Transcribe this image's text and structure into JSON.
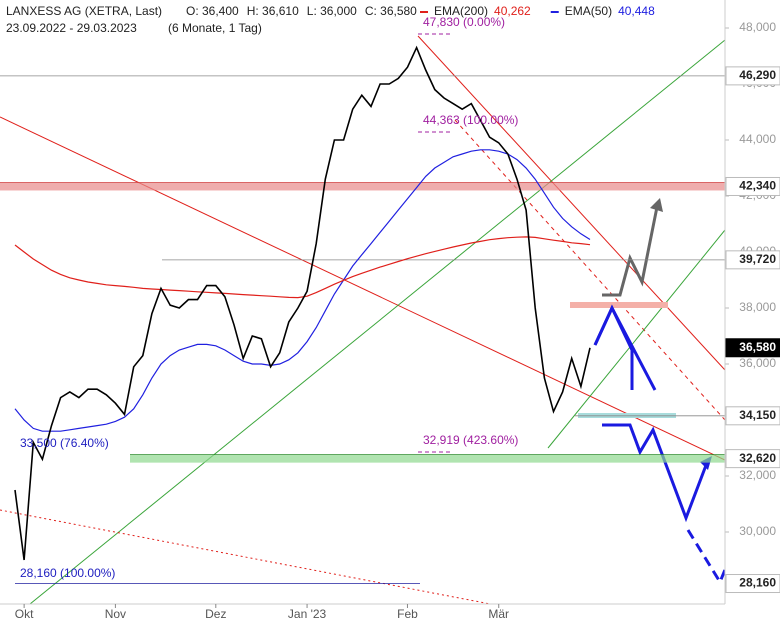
{
  "chart_data": {
    "type": "line",
    "title": "LANXESS AG (XETRA, Last)",
    "ohlc": [
      "O: 36,400",
      "H: 36,610",
      "L: 36,000",
      "C: 36,580"
    ],
    "subtitle": "23.09.2022 - 29.03.2023",
    "period": "(6 Monate, 1 Tag)",
    "categories": [
      null,
      "Okt",
      null,
      null,
      null,
      null,
      null,
      null,
      null,
      null,
      null,
      "Nov",
      null,
      null,
      null,
      null,
      null,
      null,
      null,
      null,
      null,
      null,
      "Dez",
      null,
      null,
      null,
      null,
      null,
      null,
      null,
      null,
      null,
      "Jan '23",
      null,
      null,
      null,
      null,
      null,
      null,
      null,
      null,
      null,
      null,
      "Feb",
      null,
      null,
      null,
      null,
      null,
      null,
      null,
      null,
      null,
      "Mär",
      null,
      null,
      null,
      null,
      null,
      null,
      null,
      null,
      null,
      null
    ],
    "series": [
      {
        "name": "LANXESS AG",
        "color": "#000000",
        "values": [
          31500,
          29000,
          33200,
          32600,
          33800,
          34800,
          35000,
          34800,
          35100,
          35100,
          34900,
          34600,
          34200,
          35900,
          36300,
          37800,
          38700,
          38100,
          38000,
          38300,
          38300,
          38800,
          38800,
          38400,
          37400,
          36200,
          37000,
          36900,
          35900,
          36400,
          37500,
          38000,
          38600,
          40300,
          42600,
          44000,
          44000,
          45100,
          45600,
          45200,
          46000,
          46000,
          46200,
          46600,
          47300,
          46500,
          45800,
          45500,
          45300,
          45100,
          45300,
          44700,
          44100,
          43900,
          43500,
          42600,
          41500,
          38000,
          35500,
          34300,
          35000,
          36200,
          35200,
          36580
        ]
      },
      {
        "name": "EMA(200)",
        "legend_value": "40,262",
        "color": "#e0201b",
        "values": [
          40250,
          40000,
          39750,
          39550,
          39350,
          39200,
          39080,
          39000,
          38930,
          38880,
          38830,
          38800,
          38770,
          38740,
          38700,
          38680,
          38660,
          38640,
          38620,
          38600,
          38580,
          38560,
          38540,
          38520,
          38500,
          38480,
          38460,
          38440,
          38420,
          38400,
          38380,
          38370,
          38420,
          38550,
          38700,
          38850,
          38990,
          39120,
          39240,
          39350,
          39460,
          39560,
          39660,
          39760,
          39850,
          39940,
          40020,
          40100,
          40180,
          40250,
          40320,
          40380,
          40440,
          40480,
          40510,
          40530,
          40540,
          40520,
          40470,
          40420,
          40380,
          40330,
          40300,
          40262
        ]
      },
      {
        "name": "EMA(50)",
        "legend_value": "40,448",
        "color": "#2020e0",
        "values": [
          34400,
          34000,
          33700,
          33600,
          33600,
          33600,
          33650,
          33700,
          33750,
          33800,
          33850,
          33950,
          34100,
          34400,
          34900,
          35500,
          36000,
          36300,
          36500,
          36600,
          36700,
          36700,
          36650,
          36500,
          36300,
          36100,
          36000,
          36000,
          35950,
          36000,
          36150,
          36400,
          36800,
          37300,
          37900,
          38500,
          39000,
          39500,
          39900,
          40300,
          40700,
          41100,
          41500,
          41900,
          42300,
          42700,
          43000,
          43200,
          43400,
          43500,
          43600,
          43650,
          43650,
          43600,
          43500,
          43300,
          43000,
          42600,
          42100,
          41600,
          41200,
          40900,
          40650,
          40448
        ]
      }
    ],
    "ylim": [
      27500,
      49000
    ],
    "yticks": [
      {
        "value": 28000,
        "label": "28,000"
      },
      {
        "value": 30000,
        "label": "30,000"
      },
      {
        "value": 32000,
        "label": "32,000"
      },
      {
        "value": 34000,
        "label": "34,000"
      },
      {
        "value": 36000,
        "label": "36,000"
      },
      {
        "value": 38000,
        "label": "38,000"
      },
      {
        "value": 40000,
        "label": "40,000"
      },
      {
        "value": 42000,
        "label": "42,000"
      },
      {
        "value": 44000,
        "label": "44,000"
      },
      {
        "value": 46000,
        "label": "46,000"
      },
      {
        "value": 48000,
        "label": "48,000"
      }
    ],
    "levels": [
      {
        "value": 46290,
        "label": "46,290",
        "color": "#888888"
      },
      {
        "value": 42340,
        "label": "42,340",
        "color": "#e88a8a"
      },
      {
        "value": 39720,
        "label": "39,720",
        "color": "#888888"
      },
      {
        "value": 36580,
        "label": "36,580",
        "color": "#000000"
      },
      {
        "value": 34150,
        "label": "34,150",
        "color": "#888888"
      },
      {
        "value": 32620,
        "label": "32,620",
        "color": "#8fd98f"
      },
      {
        "value": 28160,
        "label": "28,160",
        "color": "#2020a0"
      }
    ],
    "annotations": [
      "47,830 (0.00%)",
      "44,363 (100.00%)",
      "32,919 (423.60%)",
      "33,500 (76.40%)",
      "28,160 (100.00%)"
    ]
  }
}
